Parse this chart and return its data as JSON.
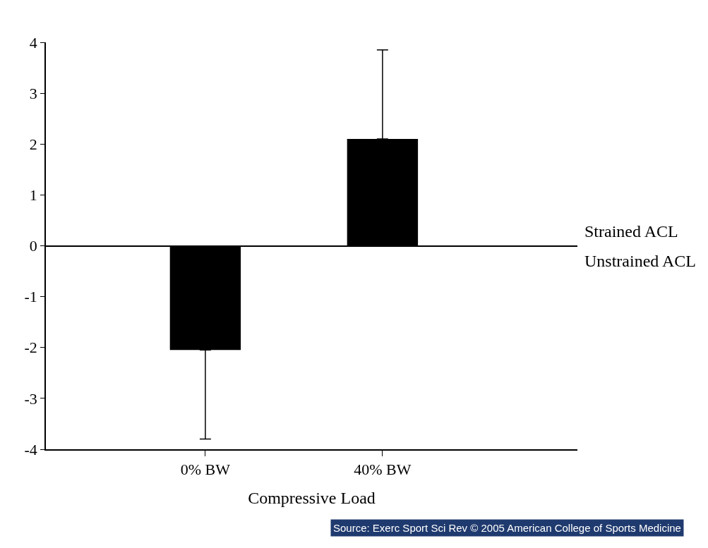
{
  "chart_data": {
    "type": "bar",
    "xlabel": "Compressive Load",
    "categories": [
      "0% BW",
      "40% BW"
    ],
    "values": [
      -2.05,
      2.1
    ],
    "color": "#000000",
    "errors": [
      [
        -3.8,
        -2.05
      ],
      [
        2.1,
        3.85
      ]
    ],
    "ylim": [
      -4,
      4
    ],
    "yticks": [
      -4,
      -3,
      -2,
      -1,
      0,
      1,
      2,
      3,
      4
    ],
    "annotations": [
      "Strained ACL",
      "Unstrained ACL",
      "Source: Exerc Sport Sci Rev © 2005 American College of Sports Medicine"
    ]
  }
}
